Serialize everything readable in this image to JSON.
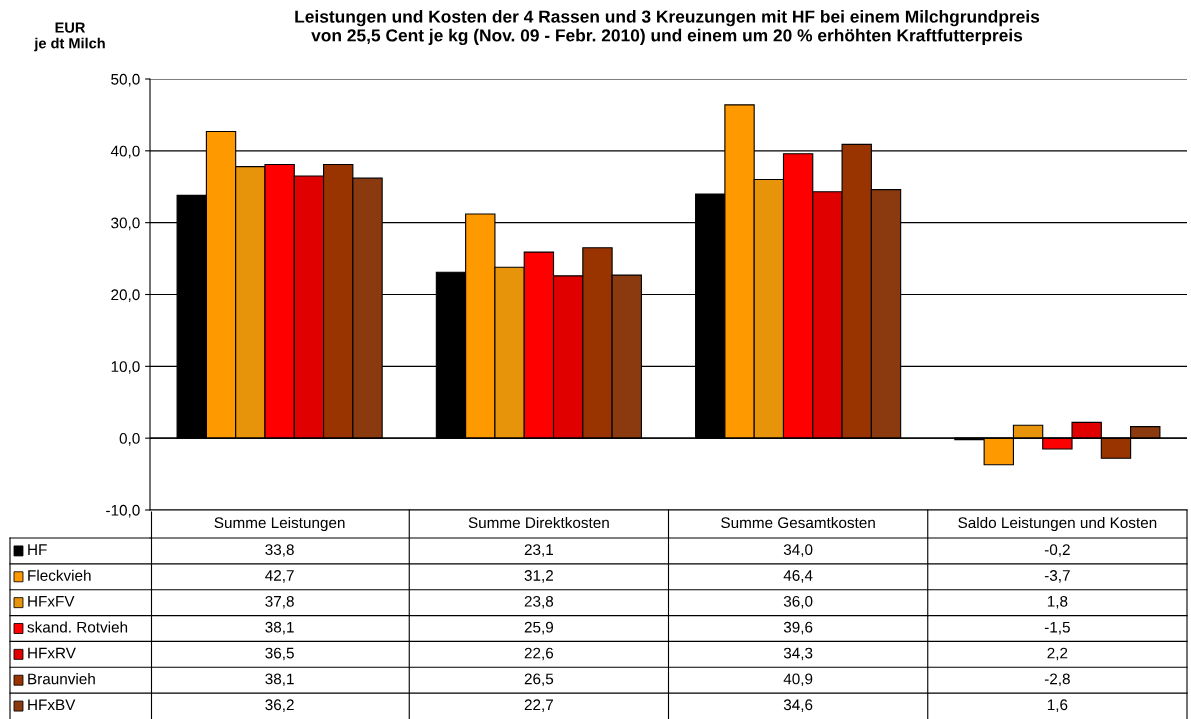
{
  "chart_data": {
    "type": "bar",
    "title": "Leistungen und Kosten der 4 Rassen und 3 Kreuzungen mit HF bei einem Milchgrundpreis\nvon 25,5 Cent je kg (Nov. 09 - Febr. 2010) und einem um 20 % erhöhten Kraftfutterpreis",
    "ylabel": "EUR\nje dt Milch",
    "categories": [
      "Summe Leistungen",
      "Summe Direktkosten",
      "Summe Gesamtkosten",
      "Saldo Leistungen und Kosten"
    ],
    "series": [
      {
        "name": "HF",
        "color": "#000000",
        "values": [
          33.8,
          23.1,
          34.0,
          -0.2
        ],
        "value_labels": [
          "33,8",
          "23,1",
          "34,0",
          "-0,2"
        ]
      },
      {
        "name": "Fleckvieh",
        "color": "#ff9900",
        "values": [
          42.7,
          31.2,
          46.4,
          -3.7
        ],
        "value_labels": [
          "42,7",
          "31,2",
          "46,4",
          "-3,7"
        ]
      },
      {
        "name": "HFxFV",
        "color": "#e8940a",
        "values": [
          37.8,
          23.8,
          36.0,
          1.8
        ],
        "value_labels": [
          "37,8",
          "23,8",
          "36,0",
          "1,8"
        ]
      },
      {
        "name": "skand. Rotvieh",
        "color": "#ff0000",
        "values": [
          38.1,
          25.9,
          39.6,
          -1.5
        ],
        "value_labels": [
          "38,1",
          "25,9",
          "39,6",
          "-1,5"
        ]
      },
      {
        "name": "HFxRV",
        "color": "#e00000",
        "values": [
          36.5,
          22.6,
          34.3,
          2.2
        ],
        "value_labels": [
          "36,5",
          "22,6",
          "34,3",
          "2,2"
        ]
      },
      {
        "name": "Braunvieh",
        "color": "#993300",
        "values": [
          38.1,
          26.5,
          40.9,
          -2.8
        ],
        "value_labels": [
          "38,1",
          "26,5",
          "40,9",
          "-2,8"
        ]
      },
      {
        "name": "HFxBV",
        "color": "#8b3a10",
        "values": [
          36.2,
          22.7,
          34.6,
          1.6
        ],
        "value_labels": [
          "36,2",
          "22,7",
          "34,6",
          "1,6"
        ]
      }
    ],
    "ylim": [
      -10,
      50
    ],
    "yticks": [
      {
        "value": -10,
        "label": "-10,0"
      },
      {
        "value": 0,
        "label": "0,0"
      },
      {
        "value": 10,
        "label": "10,0"
      },
      {
        "value": 20,
        "label": "20,0"
      },
      {
        "value": 30,
        "label": "30,0"
      },
      {
        "value": 40,
        "label": "40,0"
      },
      {
        "value": 50,
        "label": "50,0"
      }
    ],
    "grid": "y",
    "legend": "bottom"
  }
}
